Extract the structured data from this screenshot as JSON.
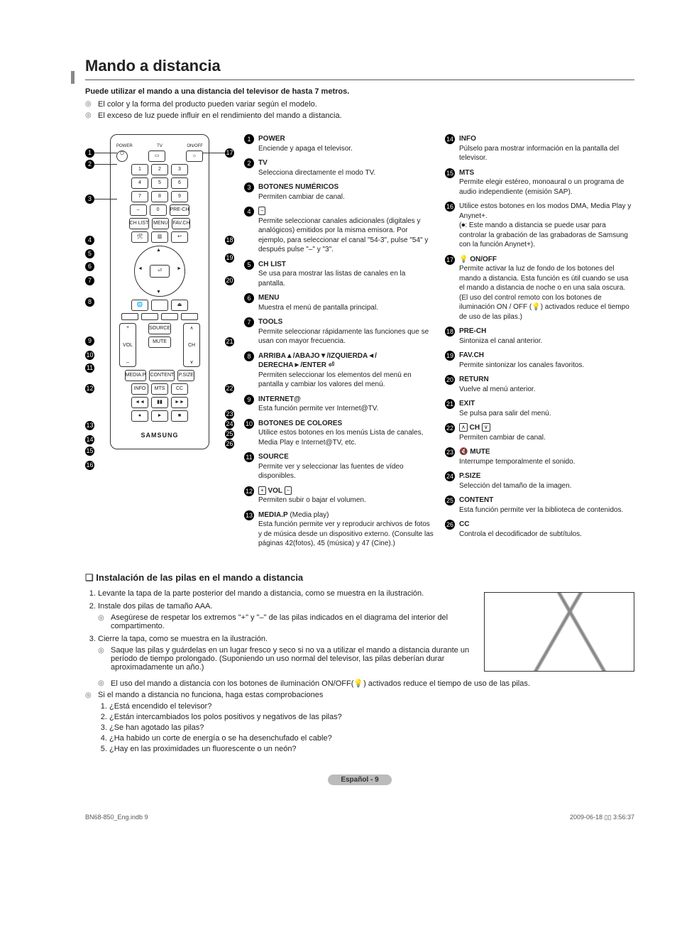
{
  "title": "Mando a distancia",
  "intro": "Puede utilizar el mando a una distancia del televisor de hasta 7 metros.",
  "notes": [
    "El color y la forma del producto pueden variar según el modelo.",
    "El exceso de luz puede influir en el rendimiento del mando a distancia."
  ],
  "remote_brand": "SAMSUNG",
  "remote_top_labels": {
    "power": "POWER",
    "tv": "TV",
    "onoff": "ON/OFF"
  },
  "remote_buttons": {
    "precн": "PRE-CH",
    "chlist": "CH LIST",
    "menu": "MENU",
    "favch": "FAV.CH",
    "source": "SOURCE",
    "mute": "MUTE",
    "vol": "VOL",
    "ch": "CH",
    "mediap": "MEDIA.P",
    "content": "CONTENT",
    "psize": "P.SIZE",
    "info": "INFO",
    "mts": "MTS",
    "cc": "CC"
  },
  "items_left": [
    {
      "n": "1",
      "label": "POWER",
      "desc": "Enciende y apaga el televisor."
    },
    {
      "n": "2",
      "label": "TV",
      "desc": "Selecciona directamente el modo TV."
    },
    {
      "n": "3",
      "label": "BOTONES NUMÉRICOS",
      "desc": "Permiten cambiar de canal."
    },
    {
      "n": "4",
      "label": "",
      "icon": "–",
      "desc": "Permite seleccionar canales adicionales (digitales y analógicos) emitidos por la misma emisora. Por ejemplo, para seleccionar el canal \"54-3\", pulse \"54\" y después pulse \"–\" y \"3\"."
    },
    {
      "n": "5",
      "label": "CH LIST",
      "desc": "Se usa para mostrar las listas de canales en la pantalla."
    },
    {
      "n": "6",
      "label": "MENU",
      "desc": "Muestra el menú de pantalla principal."
    },
    {
      "n": "7",
      "label": "TOOLS",
      "desc": "Permite seleccionar rápidamente las funciones que se usan con mayor frecuencia."
    },
    {
      "n": "8",
      "label": "ARRIBA▲/ABAJO▼/IZQUIERDA◄/ DERECHA►/ENTER ⏎",
      "desc": "Permiten seleccionar los elementos del menú en pantalla y cambiar los valores del menú."
    },
    {
      "n": "9",
      "label": "INTERNET@",
      "desc": "Esta función permite ver Internet@TV."
    },
    {
      "n": "10",
      "label": "BOTONES DE COLORES",
      "desc": "Utilice estos botones en los menús Lista de canales, Media Play e Internet@TV, etc."
    },
    {
      "n": "11",
      "label": "SOURCE",
      "desc": "Permite ver y seleccionar las fuentes de vídeo disponibles."
    },
    {
      "n": "12",
      "label": "",
      "icon_pair": [
        "+",
        "–"
      ],
      "label2": "VOL",
      "desc": "Permiten subir o bajar el volumen."
    },
    {
      "n": "13",
      "label": "MEDIA.P",
      "label_suffix": " (Media play)",
      "desc": "Esta función permite ver y reproducir archivos de fotos y de música desde un dispositivo externo. (Consulte las páginas 42(fotos), 45 (música) y 47 (Cine).)"
    }
  ],
  "items_right": [
    {
      "n": "14",
      "label": "INFO",
      "desc": "Púlselo para mostrar información en la pantalla del televisor."
    },
    {
      "n": "15",
      "label": "MTS",
      "desc": "Permite elegir estéreo, monoaural o un programa de audio independiente (emisión SAP)."
    },
    {
      "n": "16",
      "label": "",
      "desc": "Utilice estos botones en los modos DMA, Media Play y Anynet+.\n(⏺: Este mando a distancia se puede usar para controlar la grabación de las grabadoras de Samsung con la función Anynet+)."
    },
    {
      "n": "17",
      "label": "ON/OFF",
      "icon_prefix": "💡",
      "desc": "Permite activar la luz de fondo de los botones del mando a distancia. Esta función es útil cuando se usa el mando a distancia de noche o en una sala oscura. (El uso del control remoto con los botones de iluminación ON / OFF (💡) activados reduce el tiempo de uso de las pilas.)"
    },
    {
      "n": "18",
      "label": "PRE-CH",
      "desc": "Sintoniza el canal anterior."
    },
    {
      "n": "19",
      "label": "FAV.CH",
      "desc": "Permite sintonizar los canales favoritos."
    },
    {
      "n": "20",
      "label": "RETURN",
      "desc": "Vuelve al menú anterior."
    },
    {
      "n": "21",
      "label": "EXIT",
      "desc": "Se pulsa para salir del menú."
    },
    {
      "n": "22",
      "label": "CH",
      "icon_pair": [
        "∧",
        "∨"
      ],
      "desc": "Permiten cambiar de canal."
    },
    {
      "n": "23",
      "label": "MUTE",
      "icon_prefix": "🔇",
      "desc": "Interrumpe temporalmente el sonido."
    },
    {
      "n": "24",
      "label": "P.SIZE",
      "desc": "Selección del tamaño de la imagen."
    },
    {
      "n": "25",
      "label": "CONTENT",
      "desc": "Esta función permite ver la biblioteca de contenidos."
    },
    {
      "n": "26",
      "label": "CC",
      "desc": "Controla el decodificador de subtítulos."
    }
  ],
  "install": {
    "heading": "Instalación de las pilas en el mando a distancia",
    "steps": [
      {
        "text": "Levante la tapa de la parte posterior del mando a distancia, como se muestra en la ilustración."
      },
      {
        "text": "Instale dos pilas de tamaño AAA.",
        "subs": [
          "Asegúrese de respetar los extremos \"+\" y \"–\" de las pilas indicados en el diagrama del interior del compartimento."
        ]
      },
      {
        "text": "Cierre la tapa, como se muestra en la ilustración.",
        "subs": [
          "Saque las pilas y guárdelas en un lugar fresco y seco si no va a utilizar el mando a distancia durante un período de tiempo prolongado. (Suponiendo un uso normal del televisor, las pilas deberían durar aproximadamente un año.)"
        ]
      }
    ],
    "full_width_sub": "El uso del mando a distancia con los botones de iluminación ON/OFF(💡) activados reduce el tiempo de uso de las pilas.",
    "trouble_intro": "Si el mando a distancia no funciona, haga estas comprobaciones",
    "trouble": [
      "¿Está encendido el televisor?",
      "¿Están intercambiados los polos positivos y negativos de las pilas?",
      "¿Se han agotado las pilas?",
      "¿Ha habido un corte de energía o se ha desenchufado el cable?",
      "¿Hay en las proximidades un fluorescente o un neón?"
    ]
  },
  "page_badge": "Español - 9",
  "footer_left": "BN68-850_Eng.indb   9",
  "footer_right": "2009-06-18   ▯▯ 3:56:37"
}
